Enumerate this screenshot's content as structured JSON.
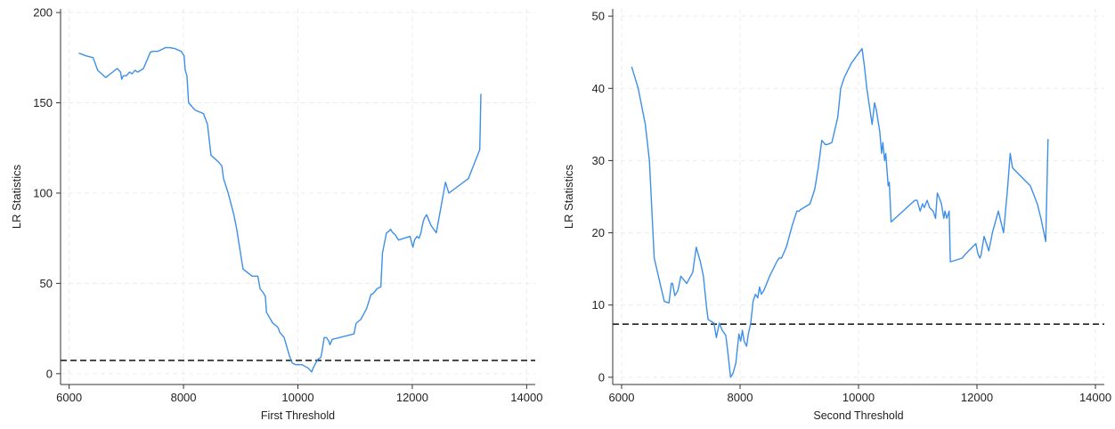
{
  "chart_data": [
    {
      "type": "line",
      "xlabel": "First Threshold",
      "ylabel": "LR Statistics",
      "xlim": [
        5850,
        14150
      ],
      "ylim": [
        -6,
        202
      ],
      "xticks": [
        6000,
        8000,
        10000,
        12000,
        14000
      ],
      "yticks": [
        0,
        50,
        100,
        150,
        200
      ],
      "grid": true,
      "colors": {
        "line": "#3d8fe8",
        "reference": "#222222"
      },
      "reference_line": {
        "y": 7.35,
        "style": "dashed"
      },
      "series": [
        {
          "x": [
            6170,
            6300,
            6420,
            6500,
            6640,
            6760,
            6840,
            6900,
            6920,
            6950,
            7000,
            7060,
            7100,
            7150,
            7200,
            7300,
            7420,
            7460,
            7550,
            7680,
            7760,
            7850,
            7960,
            8010,
            8030,
            8060,
            8090,
            8200,
            8350,
            8420,
            8480,
            8620,
            8670,
            8700,
            8780,
            8880,
            8930,
            8980,
            9040,
            9200,
            9300,
            9340,
            9390,
            9430,
            9450,
            9560,
            9640,
            9660,
            9680,
            9760,
            9850,
            9900,
            9960,
            10070,
            10180,
            10240,
            10280,
            10350,
            10400,
            10420,
            10460,
            10500,
            10540,
            10560,
            10600,
            10980,
            11020,
            11100,
            11150,
            11200,
            11280,
            11300,
            11360,
            11380,
            11450,
            11480,
            11550,
            11600,
            11620,
            11660,
            11700,
            11760,
            11960,
            12010,
            12040,
            12080,
            12120,
            12150,
            12190,
            12210,
            12250,
            12330,
            12420,
            12580,
            12640,
            12980,
            13180,
            13200
          ],
          "y": [
            177.5,
            176,
            175,
            168,
            164,
            167,
            169,
            167,
            163,
            165,
            165,
            167,
            166,
            168,
            167,
            169,
            178,
            178.5,
            178.5,
            180.5,
            180.5,
            180,
            178.5,
            176,
            168,
            165,
            150,
            146,
            144,
            138,
            121,
            117,
            115,
            108,
            100,
            88,
            80,
            70,
            58,
            54,
            54,
            47,
            45,
            43,
            34,
            28,
            26,
            25,
            23,
            20,
            10,
            6,
            5,
            5,
            3,
            1,
            4,
            8,
            9,
            12,
            20,
            20,
            18,
            16,
            19,
            22,
            28,
            30,
            33,
            36,
            44,
            44,
            46,
            47,
            48,
            67,
            78,
            79,
            80,
            78,
            77,
            74,
            76,
            70,
            74,
            76,
            75,
            78,
            84,
            86,
            88,
            82,
            78,
            106,
            100,
            108,
            124,
            155
          ]
        }
      ]
    },
    {
      "type": "line",
      "xlabel": "Second Threshold",
      "ylabel": "LR Statistics",
      "xlim": [
        5850,
        14150
      ],
      "ylim": [
        -1,
        51
      ],
      "xticks": [
        6000,
        8000,
        10000,
        12000,
        14000
      ],
      "yticks": [
        0,
        10,
        20,
        30,
        40,
        50
      ],
      "grid": true,
      "colors": {
        "line": "#3d8fe8",
        "reference": "#222222"
      },
      "reference_line": {
        "y": 7.35,
        "style": "dashed"
      },
      "series": [
        {
          "x": [
            6170,
            6280,
            6400,
            6470,
            6550,
            6720,
            6800,
            6840,
            6860,
            6900,
            6950,
            7000,
            7100,
            7200,
            7260,
            7330,
            7380,
            7430,
            7460,
            7560,
            7600,
            7650,
            7700,
            7760,
            7800,
            7840,
            7880,
            7930,
            7980,
            8010,
            8040,
            8070,
            8110,
            8140,
            8180,
            8220,
            8260,
            8300,
            8330,
            8360,
            8400,
            8500,
            8620,
            8660,
            8700,
            8780,
            8880,
            8960,
            9000,
            9020,
            9100,
            9180,
            9260,
            9320,
            9380,
            9440,
            9500,
            9550,
            9650,
            9700,
            9760,
            9880,
            10060,
            10100,
            10140,
            10230,
            10270,
            10300,
            10360,
            10390,
            10410,
            10440,
            10460,
            10500,
            10520,
            10550,
            10950,
            10990,
            11040,
            11080,
            11110,
            11160,
            11200,
            11260,
            11300,
            11330,
            11380,
            11400,
            11440,
            11460,
            11490,
            11530,
            11550,
            11560,
            11750,
            11800,
            11980,
            12020,
            12050,
            12070,
            12120,
            12200,
            12260,
            12360,
            12450,
            12520,
            12560,
            12600,
            12900,
            13020,
            13080,
            13160,
            13200
          ],
          "y": [
            43,
            40,
            35,
            30,
            16.5,
            10.5,
            10.3,
            13,
            13,
            11.3,
            12,
            14,
            13,
            14.5,
            18,
            16,
            14,
            10,
            8,
            7.5,
            5.5,
            7.5,
            6.5,
            5.8,
            3,
            0,
            0.5,
            2,
            6,
            5,
            6.5,
            5,
            4.3,
            6,
            7.5,
            10.5,
            11.5,
            11,
            12.5,
            11.5,
            12,
            14,
            16,
            16.5,
            16.5,
            18,
            21,
            23,
            23,
            23.2,
            23.6,
            24,
            26,
            29,
            32.8,
            32.2,
            32.3,
            32.5,
            36,
            40,
            41.5,
            43.5,
            45.5,
            43,
            40,
            35,
            38,
            37,
            34,
            31,
            32.5,
            30,
            31,
            26.5,
            27,
            21.5,
            24.5,
            24.5,
            23,
            24,
            23.5,
            24.5,
            23.5,
            23,
            22,
            25.5,
            24.5,
            24,
            22,
            23,
            22,
            23,
            16,
            16,
            16.5,
            17,
            18.5,
            17,
            16.5,
            17,
            19.5,
            17.5,
            20,
            23,
            20,
            26.5,
            31,
            29,
            26.5,
            24,
            22,
            18.8,
            33
          ]
        }
      ]
    }
  ]
}
